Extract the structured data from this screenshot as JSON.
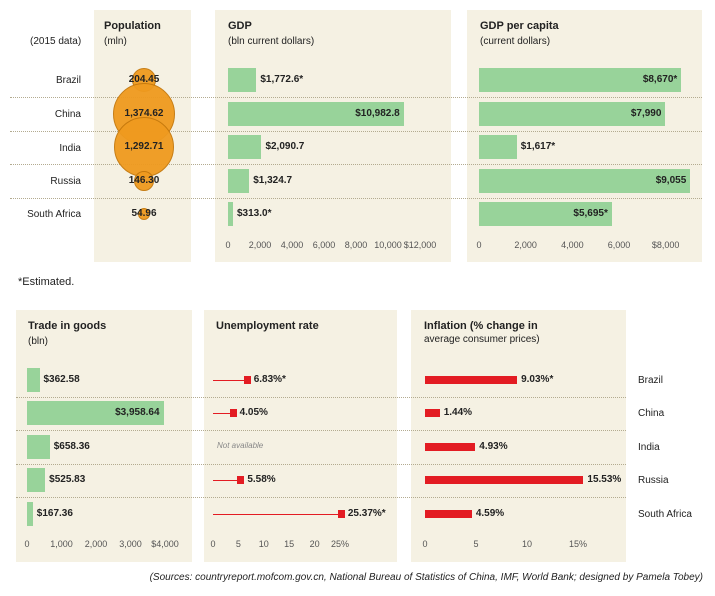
{
  "colors": {
    "panel": "#f5f1e3",
    "green_bar": "#98d39a",
    "red_bar": "#e31c23",
    "bubble": "#ef9a1f",
    "bubble_edge": "#c4780c"
  },
  "countries": [
    "Brazil",
    "China",
    "India",
    "Russia",
    "South Africa"
  ],
  "data_year_note": "(2015 data)",
  "footnote": "*Estimated.",
  "sources": "(Sources: countryreport.mofcom.gov.cn, National Bureau of Statistics of China, IMF, World Bank; designed by Pamela Tobey)",
  "chart_data": [
    {
      "id": "population",
      "type": "bubble",
      "title": "Population",
      "subtitle": "(mln)",
      "categories": [
        "Brazil",
        "China",
        "India",
        "Russia",
        "South Africa"
      ],
      "values": [
        204.45,
        1374.62,
        1292.71,
        146.3,
        54.96
      ],
      "labels": [
        "204.45",
        "1,374.62",
        "1,292.71",
        "146.30",
        "54.96"
      ]
    },
    {
      "id": "gdp",
      "type": "bar",
      "title": "GDP",
      "subtitle": "(bln current dollars)",
      "categories": [
        "Brazil",
        "China",
        "India",
        "Russia",
        "South Africa"
      ],
      "values": [
        1772.6,
        10982.8,
        2090.7,
        1324.7,
        313.0
      ],
      "labels": [
        "$1,772.6*",
        "$10,982.8",
        "$2,090.7",
        "$1,324.7",
        "$313.0*"
      ],
      "xlim": [
        0,
        12000
      ],
      "ticks": [
        0,
        2000,
        4000,
        6000,
        8000,
        10000,
        12000
      ],
      "tick_labels": [
        "0",
        "2,000",
        "4,000",
        "6,000",
        "8,000",
        "10,000",
        "$12,000"
      ]
    },
    {
      "id": "gdp_per_capita",
      "type": "bar",
      "title": "GDP per capita",
      "subtitle": "(current dollars)",
      "categories": [
        "Brazil",
        "China",
        "India",
        "Russia",
        "South Africa"
      ],
      "values": [
        8670,
        7990,
        1617,
        9055,
        5695
      ],
      "labels": [
        "$8,670*",
        "$7,990",
        "$1,617*",
        "$9,055",
        "$5,695*"
      ],
      "xlim": [
        0,
        9000
      ],
      "ticks": [
        0,
        2000,
        4000,
        6000,
        8000
      ],
      "tick_labels": [
        "0",
        "2,000",
        "4,000",
        "6,000",
        "$8,000"
      ]
    },
    {
      "id": "trade",
      "type": "bar",
      "title": "Trade in goods",
      "subtitle": "(bln)",
      "categories": [
        "Brazil",
        "China",
        "India",
        "Russia",
        "South Africa"
      ],
      "values": [
        362.58,
        3958.64,
        658.36,
        525.83,
        167.36
      ],
      "labels": [
        "$362.58",
        "$3,958.64",
        "$658.36",
        "$525.83",
        "$167.36"
      ],
      "xlim": [
        0,
        4000
      ],
      "ticks": [
        0,
        1000,
        2000,
        3000,
        4000
      ],
      "tick_labels": [
        "0",
        "1,000",
        "2,000",
        "3,000",
        "$4,000"
      ]
    },
    {
      "id": "unemployment",
      "type": "lollipop",
      "title": "Unemployment rate",
      "categories": [
        "Brazil",
        "China",
        "India",
        "Russia",
        "South Africa"
      ],
      "values": [
        6.83,
        4.05,
        null,
        5.58,
        25.37
      ],
      "labels": [
        "6.83%*",
        "4.05%",
        "Not available",
        "5.58%",
        "25.37%*"
      ],
      "xlim": [
        0,
        25
      ],
      "ticks": [
        0,
        5,
        10,
        15,
        20,
        25
      ],
      "tick_labels": [
        "0",
        "5",
        "10",
        "15",
        "20",
        "25%"
      ]
    },
    {
      "id": "inflation",
      "type": "bar",
      "title": "Inflation (% change in",
      "subtitle": "average consumer prices)",
      "categories": [
        "Brazil",
        "China",
        "India",
        "Russia",
        "South Africa"
      ],
      "values": [
        9.03,
        1.44,
        4.93,
        15.53,
        4.59
      ],
      "labels": [
        "9.03%*",
        "1.44%",
        "4.93%",
        "15.53%",
        "4.59%"
      ],
      "xlim": [
        0,
        15
      ],
      "ticks": [
        0,
        5,
        10,
        15
      ],
      "tick_labels": [
        "0",
        "5",
        "10",
        "15%"
      ]
    }
  ]
}
